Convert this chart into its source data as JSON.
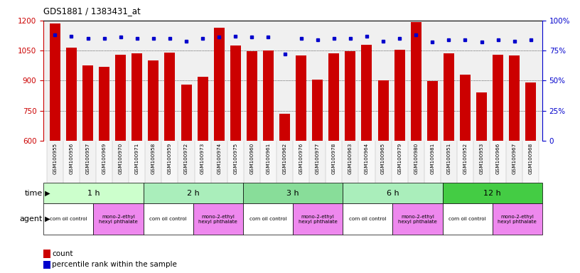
{
  "title": "GDS1881 / 1383431_at",
  "samples": [
    "GSM100955",
    "GSM100956",
    "GSM100957",
    "GSM100969",
    "GSM100970",
    "GSM100971",
    "GSM100958",
    "GSM100959",
    "GSM100972",
    "GSM100973",
    "GSM100974",
    "GSM100975",
    "GSM100960",
    "GSM100961",
    "GSM100962",
    "GSM100976",
    "GSM100977",
    "GSM100978",
    "GSM100963",
    "GSM100964",
    "GSM100965",
    "GSM100979",
    "GSM100980",
    "GSM100981",
    "GSM100951",
    "GSM100952",
    "GSM100953",
    "GSM100966",
    "GSM100967",
    "GSM100968"
  ],
  "counts": [
    1185,
    1065,
    975,
    970,
    1030,
    1035,
    1000,
    1040,
    878,
    920,
    1165,
    1075,
    1045,
    1050,
    735,
    1025,
    905,
    1035,
    1047,
    1080,
    902,
    1052,
    1193,
    897,
    1035,
    930,
    840,
    1028,
    1025,
    892
  ],
  "percentiles": [
    88,
    87,
    85,
    85,
    86,
    85,
    85,
    85,
    83,
    85,
    86,
    87,
    86,
    86,
    72,
    85,
    84,
    85,
    85,
    87,
    83,
    85,
    88,
    82,
    84,
    84,
    82,
    84,
    83,
    84
  ],
  "ylim_left": [
    600,
    1200
  ],
  "ylim_right": [
    0,
    100
  ],
  "yticks_left": [
    600,
    750,
    900,
    1050,
    1200
  ],
  "yticks_right": [
    0,
    25,
    50,
    75,
    100
  ],
  "bar_color": "#cc0000",
  "dot_color": "#0000cc",
  "bg_color": "#f0f0f0",
  "time_groups": [
    {
      "label": "1 h",
      "start": 0,
      "end": 6,
      "color": "#ccffcc"
    },
    {
      "label": "2 h",
      "start": 6,
      "end": 12,
      "color": "#aaeebb"
    },
    {
      "label": "3 h",
      "start": 12,
      "end": 18,
      "color": "#88dd99"
    },
    {
      "label": "6 h",
      "start": 18,
      "end": 24,
      "color": "#aaeebb"
    },
    {
      "label": "12 h",
      "start": 24,
      "end": 30,
      "color": "#44cc44"
    }
  ],
  "agent_groups": [
    {
      "label": "corn oil control",
      "start": 0,
      "end": 3,
      "color": "#ffffff"
    },
    {
      "label": "mono-2-ethyl\nhexyl phthalate",
      "start": 3,
      "end": 6,
      "color": "#ee88ee"
    },
    {
      "label": "corn oil control",
      "start": 6,
      "end": 9,
      "color": "#ffffff"
    },
    {
      "label": "mono-2-ethyl\nhexyl phthalate",
      "start": 9,
      "end": 12,
      "color": "#ee88ee"
    },
    {
      "label": "corn oil control",
      "start": 12,
      "end": 15,
      "color": "#ffffff"
    },
    {
      "label": "mono-2-ethyl\nhexyl phthalate",
      "start": 15,
      "end": 18,
      "color": "#ee88ee"
    },
    {
      "label": "corn oil control",
      "start": 18,
      "end": 21,
      "color": "#ffffff"
    },
    {
      "label": "mono-2-ethyl\nhexyl phthalate",
      "start": 21,
      "end": 24,
      "color": "#ee88ee"
    },
    {
      "label": "corn oil control",
      "start": 24,
      "end": 27,
      "color": "#ffffff"
    },
    {
      "label": "mono-2-ethyl\nhexyl phthalate",
      "start": 27,
      "end": 30,
      "color": "#ee88ee"
    }
  ],
  "left_axis_color": "#cc0000",
  "right_axis_color": "#0000cc",
  "grid_yticks": [
    750,
    900,
    1050
  ],
  "label_row_bg": "#d0d0d0"
}
